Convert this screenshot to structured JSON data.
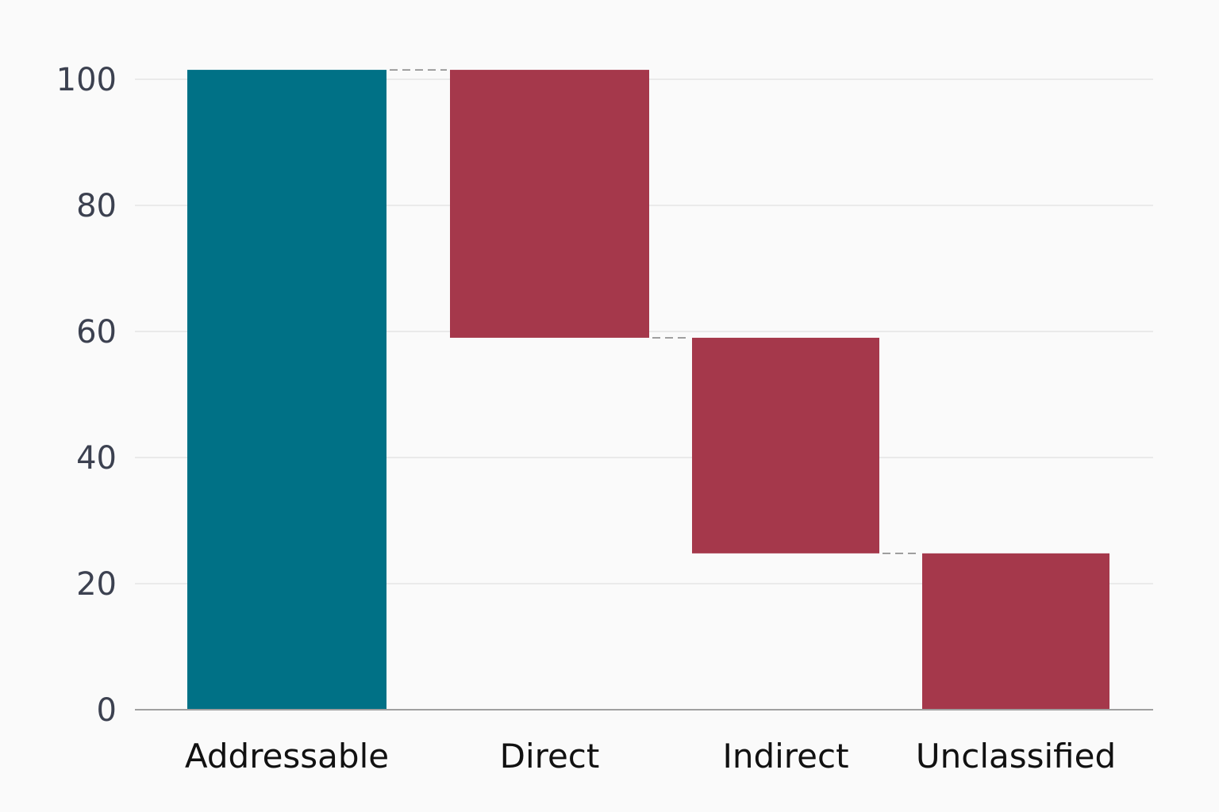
{
  "chart_data": {
    "type": "bar",
    "subtype": "waterfall",
    "title": "",
    "xlabel": "",
    "ylabel": "",
    "ylim": [
      0,
      100
    ],
    "yticks": [
      0,
      20,
      40,
      60,
      80,
      100
    ],
    "grid": true,
    "legend": "none",
    "categories": [
      "Addressable",
      "Direct",
      "Indirect",
      "Unclassified"
    ],
    "bars": [
      {
        "category": "Addressable",
        "kind": "total",
        "start": 0,
        "end": 101.5
      },
      {
        "category": "Direct",
        "kind": "decrease",
        "start": 101.5,
        "end": 59
      },
      {
        "category": "Indirect",
        "kind": "decrease",
        "start": 59,
        "end": 24.8
      },
      {
        "category": "Unclassified",
        "kind": "decrease",
        "start": 24.8,
        "end": 0
      }
    ],
    "colors": {
      "total": "#007186",
      "decrease": "#a5384b"
    }
  }
}
